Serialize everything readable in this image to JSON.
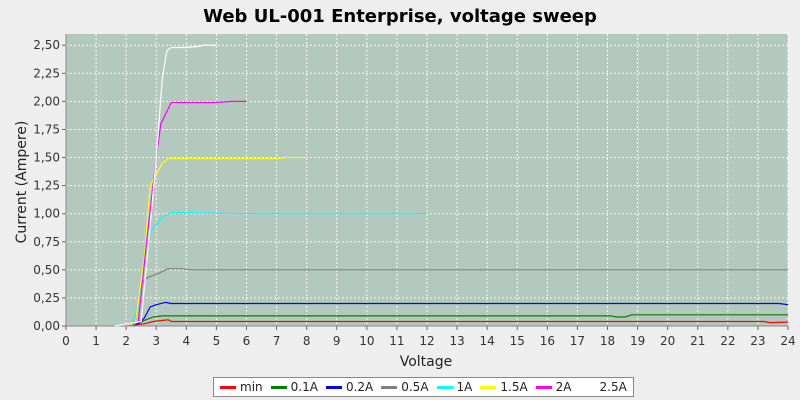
{
  "chart_data": {
    "type": "line",
    "title": "Web UL-001 Enterprise, voltage sweep",
    "xlabel": "Voltage",
    "ylabel": "Current (Ampere)",
    "xlim": [
      0,
      24
    ],
    "ylim": [
      0,
      2.6
    ],
    "x_ticks": [
      "0",
      "1",
      "2",
      "3",
      "4",
      "5",
      "6",
      "7",
      "8",
      "9",
      "10",
      "11",
      "12",
      "13",
      "14",
      "15",
      "16",
      "17",
      "18",
      "19",
      "20",
      "21",
      "22",
      "23",
      "24"
    ],
    "y_ticks": [
      "0,00",
      "0,25",
      "0,50",
      "0,75",
      "1,00",
      "1,25",
      "1,50",
      "1,75",
      "2,00",
      "2,25",
      "2,50"
    ],
    "grid": true,
    "legend_position": "bottom",
    "background_color": "#b3c9bd",
    "series": [
      {
        "name": "min",
        "color": "#ff0000",
        "points": [
          [
            1.6,
            0.0
          ],
          [
            2.0,
            0.005
          ],
          [
            2.3,
            0.01
          ],
          [
            2.6,
            0.02
          ],
          [
            2.9,
            0.04
          ],
          [
            3.2,
            0.05
          ],
          [
            3.4,
            0.055
          ],
          [
            3.5,
            0.04
          ],
          [
            4,
            0.04
          ],
          [
            8,
            0.04
          ],
          [
            12,
            0.04
          ],
          [
            16,
            0.04
          ],
          [
            20,
            0.04
          ],
          [
            23.2,
            0.04
          ],
          [
            23.4,
            0.03
          ],
          [
            24,
            0.035
          ]
        ]
      },
      {
        "name": "0.1A",
        "color": "#008000",
        "points": [
          [
            1.6,
            0.0
          ],
          [
            2.0,
            0.005
          ],
          [
            2.4,
            0.02
          ],
          [
            2.6,
            0.05
          ],
          [
            2.9,
            0.08
          ],
          [
            3.2,
            0.09
          ],
          [
            4,
            0.09
          ],
          [
            8,
            0.09
          ],
          [
            12,
            0.09
          ],
          [
            16,
            0.09
          ],
          [
            18.1,
            0.09
          ],
          [
            18.3,
            0.08
          ],
          [
            18.6,
            0.08
          ],
          [
            18.8,
            0.1
          ],
          [
            20,
            0.1
          ],
          [
            24,
            0.1
          ]
        ]
      },
      {
        "name": "0.2A",
        "color": "#0000ff",
        "points": [
          [
            1.6,
            0.0
          ],
          [
            2.0,
            0.005
          ],
          [
            2.4,
            0.02
          ],
          [
            2.6,
            0.07
          ],
          [
            2.8,
            0.17
          ],
          [
            3.0,
            0.19
          ],
          [
            3.3,
            0.21
          ],
          [
            3.5,
            0.2
          ],
          [
            4,
            0.2
          ],
          [
            8,
            0.2
          ],
          [
            12,
            0.2
          ],
          [
            16,
            0.2
          ],
          [
            20,
            0.2
          ],
          [
            23.7,
            0.2
          ],
          [
            24,
            0.19
          ]
        ]
      },
      {
        "name": "0.5A",
        "color": "#808080",
        "points": [
          [
            1.6,
            0.0
          ],
          [
            2.0,
            0.005
          ],
          [
            2.3,
            0.04
          ],
          [
            2.5,
            0.38
          ],
          [
            2.7,
            0.43
          ],
          [
            3.0,
            0.46
          ],
          [
            3.4,
            0.51
          ],
          [
            3.8,
            0.51
          ],
          [
            4.2,
            0.5
          ],
          [
            8,
            0.5
          ],
          [
            12,
            0.5
          ],
          [
            16,
            0.5
          ],
          [
            20,
            0.5
          ],
          [
            24,
            0.5
          ]
        ]
      },
      {
        "name": "1A",
        "color": "#00ffff",
        "points": [
          [
            1.6,
            0.0
          ],
          [
            2.2,
            0.01
          ],
          [
            2.5,
            0.3
          ],
          [
            2.7,
            0.8
          ],
          [
            2.9,
            0.87
          ],
          [
            3.2,
            0.97
          ],
          [
            3.5,
            1.01
          ],
          [
            4,
            1.01
          ],
          [
            6,
            1.0
          ],
          [
            8,
            1.0
          ],
          [
            10,
            1.0
          ],
          [
            12,
            1.0
          ]
        ]
      },
      {
        "name": "1.5A",
        "color": "#ffff00",
        "points": [
          [
            1.6,
            0.0
          ],
          [
            2.3,
            0.02
          ],
          [
            2.6,
            0.6
          ],
          [
            2.8,
            1.25
          ],
          [
            3.0,
            1.35
          ],
          [
            3.2,
            1.45
          ],
          [
            3.4,
            1.49
          ],
          [
            4,
            1.49
          ],
          [
            5,
            1.49
          ],
          [
            6,
            1.49
          ],
          [
            7,
            1.49
          ],
          [
            7.3,
            1.5
          ],
          [
            8,
            1.5
          ]
        ]
      },
      {
        "name": "2A",
        "color": "#ff00ff",
        "points": [
          [
            1.6,
            0.0
          ],
          [
            2.4,
            0.03
          ],
          [
            2.7,
            0.8
          ],
          [
            3.0,
            1.5
          ],
          [
            3.15,
            1.8
          ],
          [
            3.35,
            1.91
          ],
          [
            3.5,
            1.99
          ],
          [
            4,
            1.99
          ],
          [
            5,
            1.99
          ],
          [
            5.5,
            2.0
          ],
          [
            6,
            2.0
          ]
        ]
      },
      {
        "name": "2.5A",
        "color": "#ffffff",
        "points": [
          [
            1.6,
            0.0
          ],
          [
            2.5,
            0.04
          ],
          [
            2.8,
            0.9
          ],
          [
            3.0,
            1.5
          ],
          [
            3.2,
            2.2
          ],
          [
            3.35,
            2.45
          ],
          [
            3.5,
            2.48
          ],
          [
            4,
            2.48
          ],
          [
            4.4,
            2.49
          ],
          [
            4.6,
            2.5
          ],
          [
            5,
            2.5
          ]
        ]
      }
    ]
  }
}
